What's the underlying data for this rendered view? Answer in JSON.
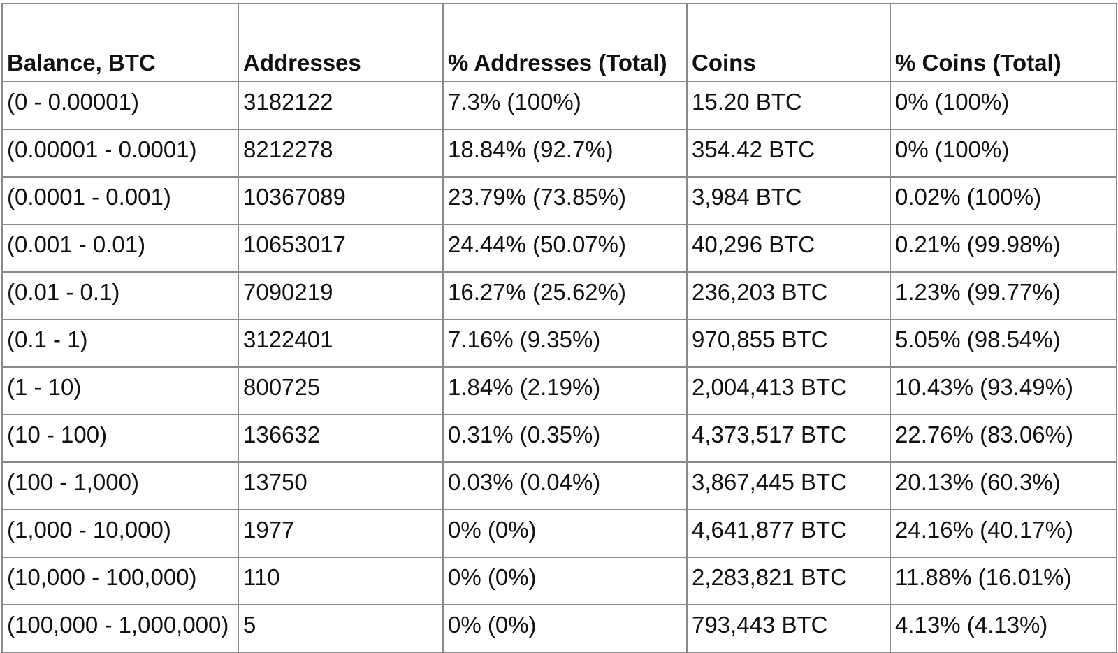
{
  "table": {
    "header": [
      "Balance, BTC",
      "Addresses",
      "% Addresses (Total)",
      "Coins",
      "% Coins (Total)"
    ],
    "rows": [
      [
        "(0 - 0.00001)",
        "3182122",
        "7.3% (100%)",
        "15.20 BTC",
        "0% (100%)"
      ],
      [
        "(0.00001 - 0.0001)",
        "8212278",
        "18.84% (92.7%)",
        "354.42 BTC",
        "0% (100%)"
      ],
      [
        "(0.0001 - 0.001)",
        "10367089",
        "23.79% (73.85%)",
        "3,984 BTC",
        "0.02% (100%)"
      ],
      [
        "(0.001 - 0.01)",
        "10653017",
        "24.44% (50.07%)",
        "40,296 BTC",
        "0.21% (99.98%)"
      ],
      [
        "(0.01 - 0.1)",
        "7090219",
        "16.27% (25.62%)",
        "236,203 BTC",
        "1.23% (99.77%)"
      ],
      [
        "(0.1 - 1)",
        "3122401",
        "7.16% (9.35%)",
        "970,855 BTC",
        "5.05% (98.54%)"
      ],
      [
        "(1 - 10)",
        "800725",
        "1.84% (2.19%)",
        "2,004,413 BTC",
        "10.43% (93.49%)"
      ],
      [
        "(10 - 100)",
        "136632",
        "0.31% (0.35%)",
        "4,373,517 BTC",
        "22.76% (83.06%)"
      ],
      [
        "(100 - 1,000)",
        "13750",
        "0.03% (0.04%)",
        "3,867,445 BTC",
        "20.13% (60.3%)"
      ],
      [
        "(1,000 - 10,000)",
        "1977",
        "0% (0%)",
        "4,641,877 BTC",
        "24.16% (40.17%)"
      ],
      [
        "(10,000 - 100,000)",
        "110",
        "0% (0%)",
        "2,283,821 BTC",
        "11.88% (16.01%)"
      ],
      [
        "(100,000 - 1,000,000)",
        "5",
        "0% (0%)",
        "793,443 BTC",
        "4.13% (4.13%)"
      ]
    ]
  }
}
